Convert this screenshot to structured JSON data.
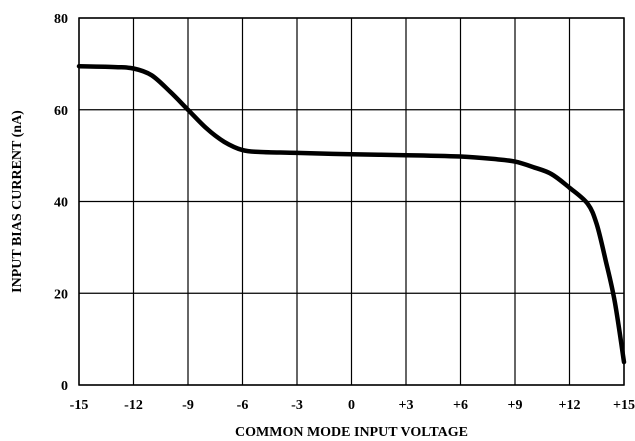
{
  "chart_data": {
    "type": "line",
    "title": "",
    "xlabel": "COMMON MODE INPUT VOLTAGE",
    "ylabel": "INPUT BIAS CURRENT (nA)",
    "xlim": [
      -15,
      15
    ],
    "ylim": [
      0,
      80
    ],
    "x_ticks": [
      -15,
      -12,
      -9,
      -6,
      -3,
      0,
      3,
      6,
      9,
      12,
      15
    ],
    "x_tick_labels": [
      "-15",
      "-12",
      "-9",
      "-6",
      "-3",
      "0",
      "+3",
      "+6",
      "+9",
      "+12",
      "+15"
    ],
    "y_ticks": [
      0,
      20,
      40,
      60,
      80
    ],
    "y_tick_labels": [
      "0",
      "20",
      "40",
      "60",
      "80"
    ],
    "grid": true,
    "series": [
      {
        "x": [
          -15,
          -13,
          -12,
          -11,
          -10,
          -9,
          -8,
          -7,
          -6,
          -5,
          -3,
          0,
          3,
          6,
          8,
          9,
          10,
          11,
          12,
          13,
          13.5,
          14,
          14.5,
          15
        ],
        "y": [
          69.5,
          69.3,
          69,
          67.5,
          64,
          60,
          56,
          53,
          51.2,
          50.8,
          50.6,
          50.3,
          50.1,
          49.8,
          49.2,
          48.7,
          47.5,
          46,
          43,
          39.5,
          35,
          27,
          18,
          5
        ]
      }
    ]
  }
}
